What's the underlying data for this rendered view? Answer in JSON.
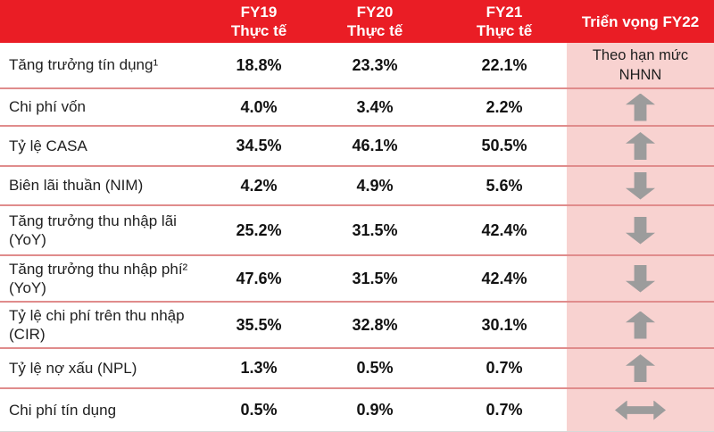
{
  "table": {
    "header": {
      "col_fy19": {
        "year": "FY19",
        "sub": "Thực tế"
      },
      "col_fy20": {
        "year": "FY20",
        "sub": "Thực tế"
      },
      "col_fy21": {
        "year": "FY21",
        "sub": "Thực tế"
      },
      "col_fy22": "Triển vọng FY22"
    },
    "rows": [
      {
        "label": "Tăng trưởng tín dụng¹",
        "fy19": "18.8%",
        "fy20": "23.3%",
        "fy21": "22.1%",
        "outlook": "text",
        "outlook_text": "Theo hạn mức NHNN"
      },
      {
        "label": "Chi phí vốn",
        "fy19": "4.0%",
        "fy20": "3.4%",
        "fy21": "2.2%",
        "outlook": "up"
      },
      {
        "label": "Tỷ lệ CASA",
        "fy19": "34.5%",
        "fy20": "46.1%",
        "fy21": "50.5%",
        "outlook": "up"
      },
      {
        "label": "Biên lãi thuần (NIM)",
        "fy19": "4.2%",
        "fy20": "4.9%",
        "fy21": "5.6%",
        "outlook": "down"
      },
      {
        "label": "Tăng trưởng thu nhập lãi (YoY)",
        "fy19": "25.2%",
        "fy20": "31.5%",
        "fy21": "42.4%",
        "outlook": "down"
      },
      {
        "label": "Tăng trưởng thu nhập phí² (YoY)",
        "fy19": "47.6%",
        "fy20": "31.5%",
        "fy21": "42.4%",
        "outlook": "down"
      },
      {
        "label": "Tỷ lệ chi phí trên thu nhập (CIR)",
        "fy19": "35.5%",
        "fy20": "32.8%",
        "fy21": "30.1%",
        "outlook": "up"
      },
      {
        "label": "Tỷ lệ nợ xấu (NPL)",
        "fy19": "1.3%",
        "fy20": "0.5%",
        "fy21": "0.7%",
        "outlook": "up"
      },
      {
        "label": "Chi phí tín dụng",
        "fy19": "0.5%",
        "fy20": "0.9%",
        "fy21": "0.7%",
        "outlook": "both"
      }
    ],
    "colors": {
      "header_red": "#EA1D25",
      "outlook_pink": "#F8D2D0",
      "separator_line": "#E08C8C",
      "arrow_gray": "#9C9C9C"
    }
  }
}
